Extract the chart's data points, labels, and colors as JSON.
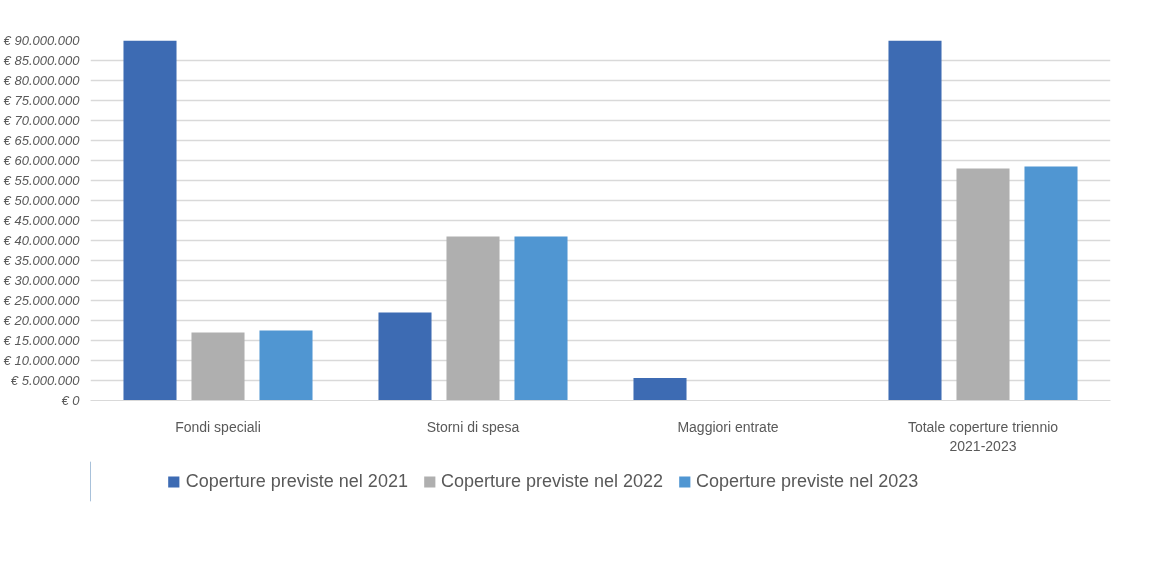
{
  "chart_data": {
    "type": "bar",
    "categories": [
      "Fondi speciali",
      "Storni di spesa",
      "Maggiori entrate",
      "Totale coperture triennio 2021-2023"
    ],
    "series": [
      {
        "name": "Coperture previste nel 2021",
        "color": "#3d6bb3",
        "values": [
          90000000,
          22000000,
          5600000,
          90000000
        ]
      },
      {
        "name": "Coperture previste nel 2022",
        "color": "#afafaf",
        "values": [
          17000000,
          41000000,
          null,
          58000000
        ]
      },
      {
        "name": "Coperture previste nel 2023",
        "color": "#5096d2",
        "values": [
          17500000,
          41000000,
          null,
          58500000
        ]
      }
    ],
    "ylim": [
      0,
      90000000
    ],
    "yticks": [
      {
        "value": 0,
        "label": "€ 0"
      },
      {
        "value": 5000000,
        "label": "€ 5.000.000"
      },
      {
        "value": 10000000,
        "label": "€ 10.000.000"
      },
      {
        "value": 15000000,
        "label": "€ 15.000.000"
      },
      {
        "value": 20000000,
        "label": "€ 20.000.000"
      },
      {
        "value": 25000000,
        "label": "€ 25.000.000"
      },
      {
        "value": 30000000,
        "label": "€ 30.000.000"
      },
      {
        "value": 35000000,
        "label": "€ 35.000.000"
      },
      {
        "value": 40000000,
        "label": "€ 40.000.000"
      },
      {
        "value": 45000000,
        "label": "€ 45.000.000"
      },
      {
        "value": 50000000,
        "label": "€ 50.000.000"
      },
      {
        "value": 55000000,
        "label": "€ 55.000.000"
      },
      {
        "value": 60000000,
        "label": "€ 60.000.000"
      },
      {
        "value": 65000000,
        "label": "€ 65.000.000"
      },
      {
        "value": 70000000,
        "label": "€ 70.000.000"
      },
      {
        "value": 75000000,
        "label": "€ 75.000.000"
      },
      {
        "value": 80000000,
        "label": "€ 80.000.000"
      },
      {
        "value": 85000000,
        "label": "€ 85.000.000"
      },
      {
        "value": 90000000,
        "label": "€ 90.000.000"
      }
    ],
    "grid": "y",
    "legend": "bottom"
  }
}
